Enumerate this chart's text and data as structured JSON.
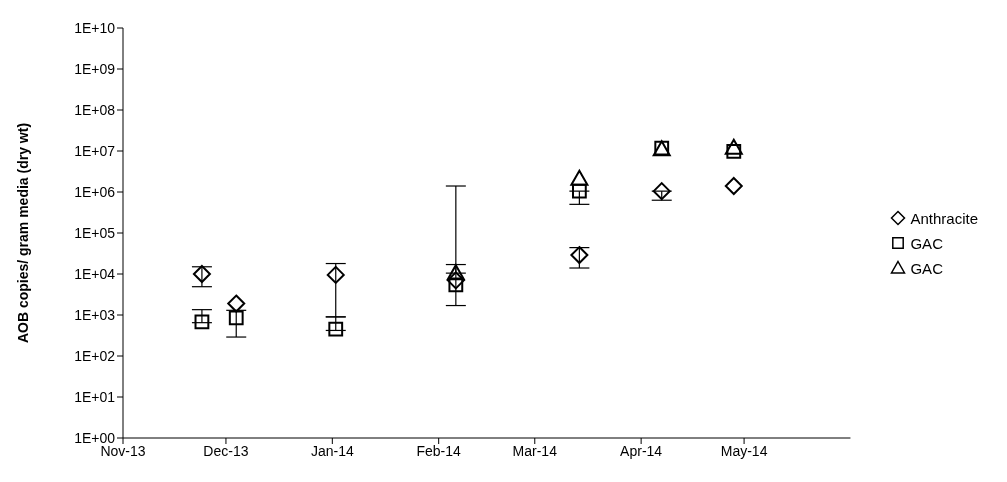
{
  "chart_data": {
    "type": "scatter",
    "ylabel": "AOB copies/ gram media (dry wt)",
    "log": "y",
    "legend": "right",
    "grid": false,
    "xlim": [
      "2013-11-01",
      "2014-06-01"
    ],
    "xticks": [
      {
        "value": "2013-11-01",
        "label": "Nov-13"
      },
      {
        "value": "2013-12-01",
        "label": "Dec-13"
      },
      {
        "value": "2014-01-01",
        "label": "Jan-14"
      },
      {
        "value": "2014-02-01",
        "label": "Feb-14"
      },
      {
        "value": "2014-03-01",
        "label": "Mar-14"
      },
      {
        "value": "2014-04-01",
        "label": "Apr-14"
      },
      {
        "value": "2014-05-01",
        "label": "May-14"
      }
    ],
    "ylim": [
      1,
      10000000000
    ],
    "yticks": [
      {
        "value": 1,
        "label": "1E+00"
      },
      {
        "value": 10,
        "label": "1E+01"
      },
      {
        "value": 100,
        "label": "1E+02"
      },
      {
        "value": 1000,
        "label": "1E+03"
      },
      {
        "value": 10000,
        "label": "1E+04"
      },
      {
        "value": 100000,
        "label": "1E+05"
      },
      {
        "value": 1000000,
        "label": "1E+06"
      },
      {
        "value": 10000000,
        "label": "1E+07"
      },
      {
        "value": 100000000,
        "label": "1E+08"
      },
      {
        "value": 1000000000,
        "label": "1E+09"
      },
      {
        "value": 10000000000,
        "label": "1E+10"
      }
    ],
    "series": [
      {
        "name": "Anthracite",
        "color": "#000000",
        "marker": "diamond",
        "x": [
          "2013-11-24",
          "2013-12-04",
          "2014-01-02",
          "2014-02-06",
          "2014-03-14",
          "2014-04-07",
          "2014-04-28"
        ],
        "values": [
          10000,
          1900,
          9500,
          7000,
          29000,
          1050000,
          1400000
        ],
        "errors": [
          [
            4900,
            15000
          ],
          null,
          [
            900,
            18000
          ],
          null,
          [
            14000,
            44000
          ],
          [
            630000,
            1050000
          ],
          null
        ]
      },
      {
        "name": "GAC",
        "color": "#000000",
        "marker": "square",
        "x": [
          "2013-11-24",
          "2013-12-04",
          "2014-01-02",
          "2014-02-06",
          "2014-03-14",
          "2014-04-07",
          "2014-04-28"
        ],
        "values": [
          680,
          850,
          450,
          5400,
          1050000,
          11700000,
          9800000
        ],
        "errors": [
          [
            650,
            1350
          ],
          [
            290,
            1300
          ],
          [
            420,
            900
          ],
          [
            1700,
            1400000
          ],
          [
            500000,
            1050000
          ],
          null,
          null
        ]
      },
      {
        "name": "GAC",
        "color": "#000000",
        "marker": "triangle",
        "x": [
          "2014-02-06",
          "2014-03-14",
          "2014-04-07",
          "2014-04-28"
        ],
        "values": [
          10500,
          2100000,
          11000000,
          12000000
        ],
        "errors": [
          [
            10500,
            17000
          ],
          null,
          null,
          null
        ]
      }
    ]
  }
}
